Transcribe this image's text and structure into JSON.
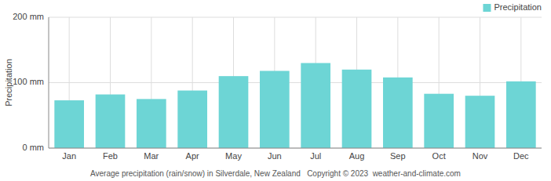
{
  "chart_data": {
    "type": "bar",
    "categories": [
      "Jan",
      "Feb",
      "Mar",
      "Apr",
      "May",
      "Jun",
      "Jul",
      "Aug",
      "Sep",
      "Oct",
      "Nov",
      "Dec"
    ],
    "series": [
      {
        "name": "Precipitation",
        "color": "#6dd5d5",
        "values": [
          73,
          82,
          75,
          88,
          110,
          118,
          130,
          120,
          108,
          83,
          80,
          102
        ]
      }
    ],
    "y_label": "Precipitation",
    "ylim": [
      0,
      200
    ],
    "yticks": [
      {
        "value": 0,
        "label": "0 mm"
      },
      {
        "value": 100,
        "label": "100 mm"
      },
      {
        "value": 200,
        "label": "200 mm"
      }
    ],
    "grid": true,
    "legend": "upper right",
    "annotations": [
      "Average precipitation (rain/snow) in Silverdale, New Zealand   Copyright © 2023  weather-and-climate.com"
    ]
  }
}
